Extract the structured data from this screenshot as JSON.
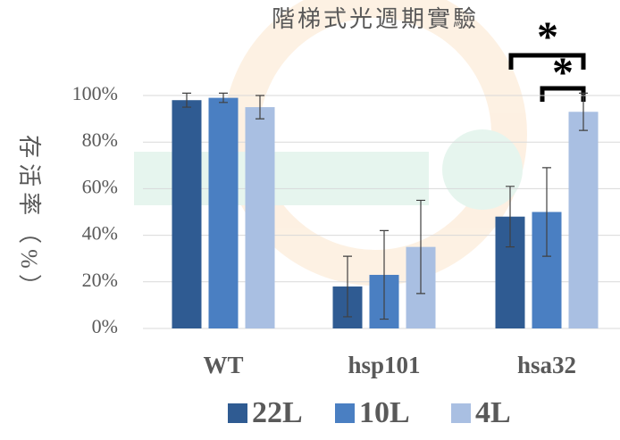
{
  "chart_data": {
    "type": "bar",
    "title": "階梯式光週期實驗",
    "y_label": "存活率（%）",
    "categories": [
      "WT",
      "hsp101",
      "hsa32"
    ],
    "series": [
      {
        "name": "22L",
        "color": "#2f5b92",
        "values": [
          98,
          18,
          48
        ],
        "errors": [
          3,
          13,
          13
        ]
      },
      {
        "name": "10L",
        "color": "#4a7fc2",
        "values": [
          99,
          23,
          50
        ],
        "errors": [
          2,
          19,
          19
        ]
      },
      {
        "name": "4L",
        "color": "#a9bfe2",
        "values": [
          95,
          35,
          93
        ],
        "errors": [
          5,
          20,
          8
        ]
      }
    ],
    "ylim": [
      0,
      100
    ],
    "yticks": [
      {
        "value": 0,
        "label": "0%"
      },
      {
        "value": 20,
        "label": "20%"
      },
      {
        "value": 40,
        "label": "40%"
      },
      {
        "value": 60,
        "label": "60%"
      },
      {
        "value": 80,
        "label": "80%"
      },
      {
        "value": 100,
        "label": "100%"
      }
    ],
    "grid": true,
    "annotations": [
      "*",
      "*"
    ]
  }
}
